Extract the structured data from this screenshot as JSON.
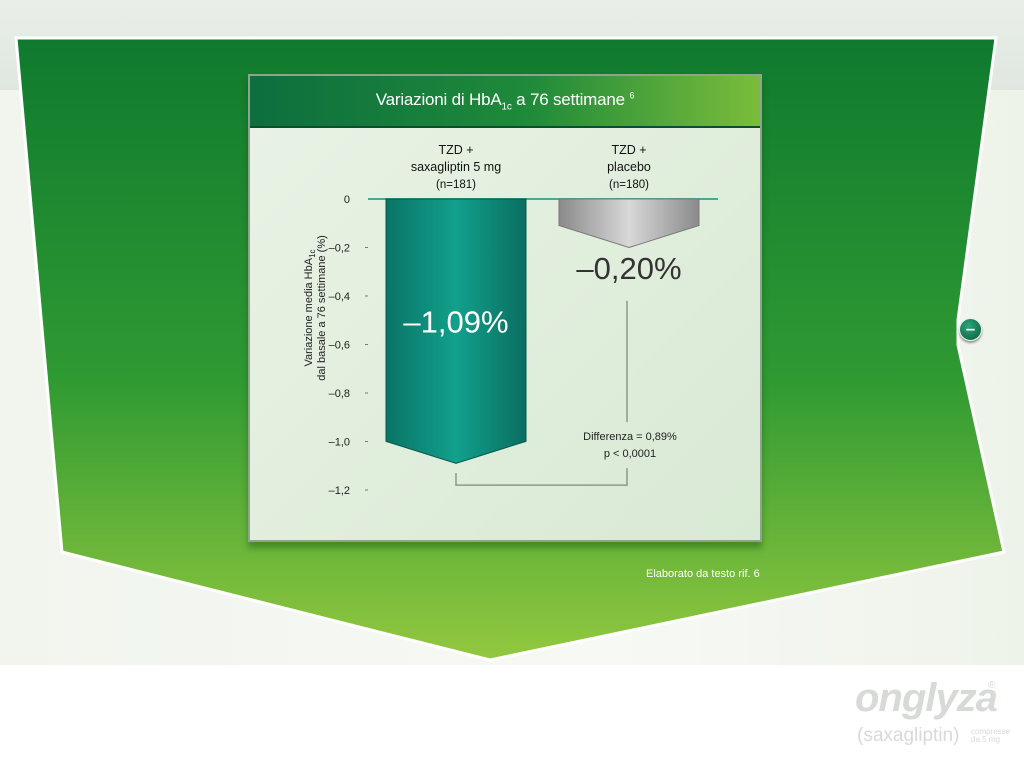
{
  "chart_data": {
    "type": "bar",
    "title": "Variazioni di HbA1c a 76 settimane 6",
    "title_parts": {
      "main": "Variazioni di HbA",
      "sub": "1c",
      "rest": " a 76 settimane",
      "sup": "6"
    },
    "ylabel_line1": "Variazione media HbA1c",
    "ylabel_line1_parts": {
      "main": "Variazione media HbA",
      "sub": "1c"
    },
    "ylabel_line2": "dal basale a 76 settimane (%)",
    "ylim": [
      -1.2,
      0
    ],
    "yticks": [
      0,
      -0.2,
      -0.4,
      -0.6,
      -0.8,
      -1.0,
      -1.2
    ],
    "ytick_labels": [
      "0",
      "–0,2",
      "–0,4",
      "–0,6",
      "–0,8",
      "–1,0",
      "–1,2"
    ],
    "categories": [
      {
        "line1": "TZD +",
        "line2": "saxagliptin 5 mg",
        "n": "(n=181)"
      },
      {
        "line1": "TZD +",
        "line2": "placebo",
        "n": "(n=180)"
      }
    ],
    "values": [
      -1.09,
      -0.2
    ],
    "value_labels": [
      "–1,09%",
      "–0,20%"
    ],
    "colors": [
      "#0e8a78",
      "#9a9a9a"
    ],
    "annotation_line1": "Differenza = 0,89%",
    "annotation_line2": "p < 0,0001",
    "grid": false,
    "legend": "none"
  },
  "source_note": "Elaborato da testo rif. 6",
  "controls": {
    "collapse_glyph": "–"
  },
  "brand": {
    "name": "onglyza",
    "reg": "®",
    "generic": "(saxagliptin)",
    "dose": "compresse da 5 mg"
  },
  "colors": {
    "panel_green_top": "#0f7a2e",
    "panel_green_bottom": "#8cc63f",
    "header_dark": "#0d6e3e"
  }
}
